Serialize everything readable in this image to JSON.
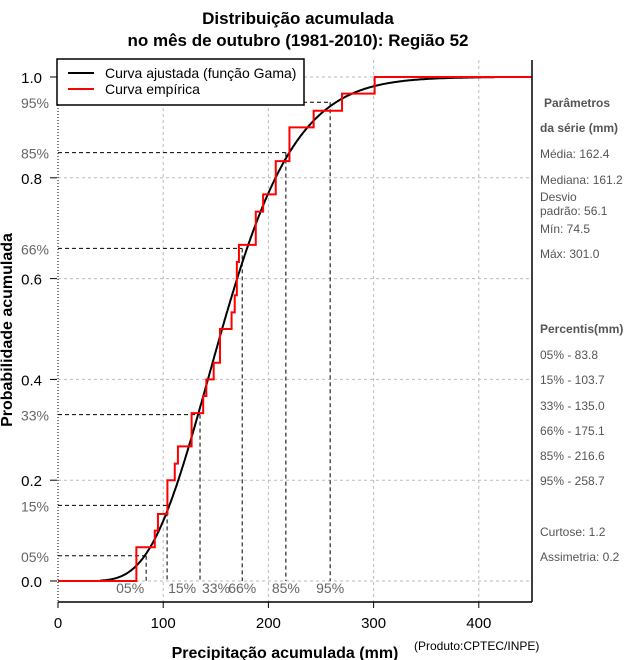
{
  "chart_data": {
    "type": "line",
    "title_line1": "Distribuição acumulada",
    "title_line2": "no mês de outubro (1981-2010): Região 52",
    "xlabel": "Precipitação acumulada (mm)",
    "xlabel_note": "(Produto:CPTEC/INPE)",
    "ylabel": "Probabilidade acumulada",
    "xlim": [
      0,
      450
    ],
    "ylim": [
      0,
      1
    ],
    "x_ticks": [
      0,
      100,
      200,
      300,
      400
    ],
    "x_tick_labels": [
      "0",
      "100",
      "200",
      "300",
      "400"
    ],
    "y_ticks": [
      0,
      0.2,
      0.4,
      0.6,
      0.8,
      1.0
    ],
    "y_tick_labels": [
      "0.0",
      "0.2",
      "0.4",
      "0.6",
      "0.8",
      "1.0"
    ],
    "grid": true,
    "legend": {
      "placement": "top-left",
      "entries": [
        {
          "label": "Curva ajustada (função Gama)",
          "color": "#000000"
        },
        {
          "label": "Curva empírica",
          "color": "#ff0000"
        }
      ]
    },
    "fitted_gamma": {
      "shape": 8.38,
      "scale": 19.38,
      "x_range": [
        0,
        415
      ]
    },
    "empirical_steps": {
      "x": [
        74.5,
        92,
        95,
        104,
        111,
        114,
        127,
        138,
        141,
        148,
        154,
        165,
        168,
        170,
        172,
        188,
        195,
        207,
        220,
        243,
        270,
        301
      ],
      "y": [
        0.067,
        0.1,
        0.133,
        0.2,
        0.233,
        0.267,
        0.333,
        0.367,
        0.4,
        0.433,
        0.5,
        0.533,
        0.567,
        0.633,
        0.667,
        0.733,
        0.767,
        0.833,
        0.9,
        0.933,
        0.967,
        1.0
      ]
    },
    "percentiles": [
      {
        "label": "05%",
        "p": 0.05,
        "x": 83.8
      },
      {
        "label": "15%",
        "p": 0.15,
        "x": 103.7
      },
      {
        "label": "33%",
        "p": 0.33,
        "x": 135.0
      },
      {
        "label": "66%",
        "p": 0.66,
        "x": 175.1
      },
      {
        "label": "85%",
        "p": 0.85,
        "x": 216.6
      },
      {
        "label": "95%",
        "p": 0.95,
        "x": 258.7
      }
    ]
  },
  "side_panel": {
    "params_title_1": "Parâmetros",
    "params_title_2": "da série (mm)",
    "media": "Média: 162.4",
    "mediana": "Mediana: 161.2",
    "desvio_1": "Desvio",
    "desvio_2": "padrão: 56.1",
    "min": "Mín: 74.5",
    "max": "Máx: 301.0",
    "percentis_title": "Percentis(mm)",
    "percentis": [
      "05% - 83.8",
      "15% - 103.7",
      "33% - 135.0",
      "66% - 175.1",
      "85% - 216.6",
      "95% - 258.7"
    ],
    "curtose": "Curtose: 1.2",
    "assimetria": "Assimetria: 0.2"
  }
}
